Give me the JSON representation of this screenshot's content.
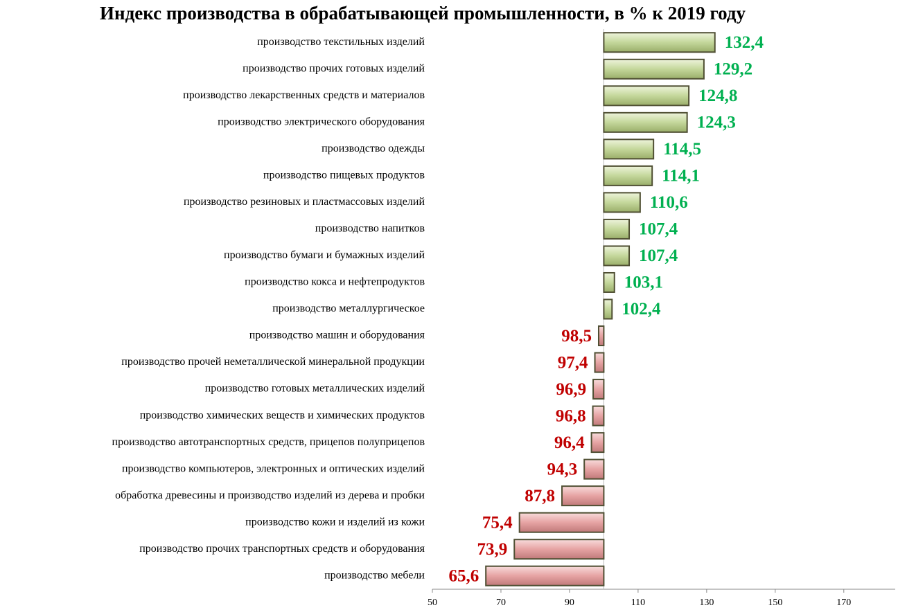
{
  "chart_data": {
    "type": "bar",
    "orientation": "horizontal",
    "title": "Индекс производства в обрабатывающей промышленности, в % к 2019 году",
    "categories": [
      "производство текстильных изделий",
      "производство прочих готовых изделий",
      "производство лекарственных средств и материалов",
      "производство электрического оборудования",
      "производство одежды",
      "производство пищевых продуктов",
      "производство резиновых и пластмассовых изделий",
      "производство напитков",
      "производство бумаги и бумажных изделий",
      "производство кокса и нефтепродуктов",
      "производство металлургическое",
      "производство машин и оборудования",
      "производство прочей неметаллической минеральной продукции",
      "производство готовых металлических изделий",
      "производство химических веществ и химических продуктов",
      "производство автотранспортных средств, прицепов полуприцепов",
      "производство компьютеров, электронных и оптических изделий",
      "обработка древесины и производство изделий из дерева и пробки",
      "производство кожи и изделий из кожи",
      "производство прочих транспортных средств и оборудования",
      "производство мебели"
    ],
    "values": [
      132.4,
      129.2,
      124.8,
      124.3,
      114.5,
      114.1,
      110.6,
      107.4,
      107.4,
      103.1,
      102.4,
      98.5,
      97.4,
      96.9,
      96.8,
      96.4,
      94.3,
      87.8,
      75.4,
      73.9,
      65.6
    ],
    "value_labels": [
      "132,4",
      "129,2",
      "124,8",
      "124,3",
      "114,5",
      "114,1",
      "110,6",
      "107,4",
      "107,4",
      "103,1",
      "102,4",
      "98,5",
      "97,4",
      "96,9",
      "96,8",
      "96,4",
      "94,3",
      "87,8",
      "75,4",
      "73,9",
      "65,6"
    ],
    "baseline": 100,
    "xlim": [
      50,
      185
    ],
    "xticks": [
      50,
      70,
      90,
      110,
      130,
      150,
      170
    ],
    "bar_colors": {
      "above": "#c4d79b",
      "below": "#e6a3a3"
    },
    "label_colors": {
      "above": "#00b050",
      "below": "#c00000"
    }
  }
}
